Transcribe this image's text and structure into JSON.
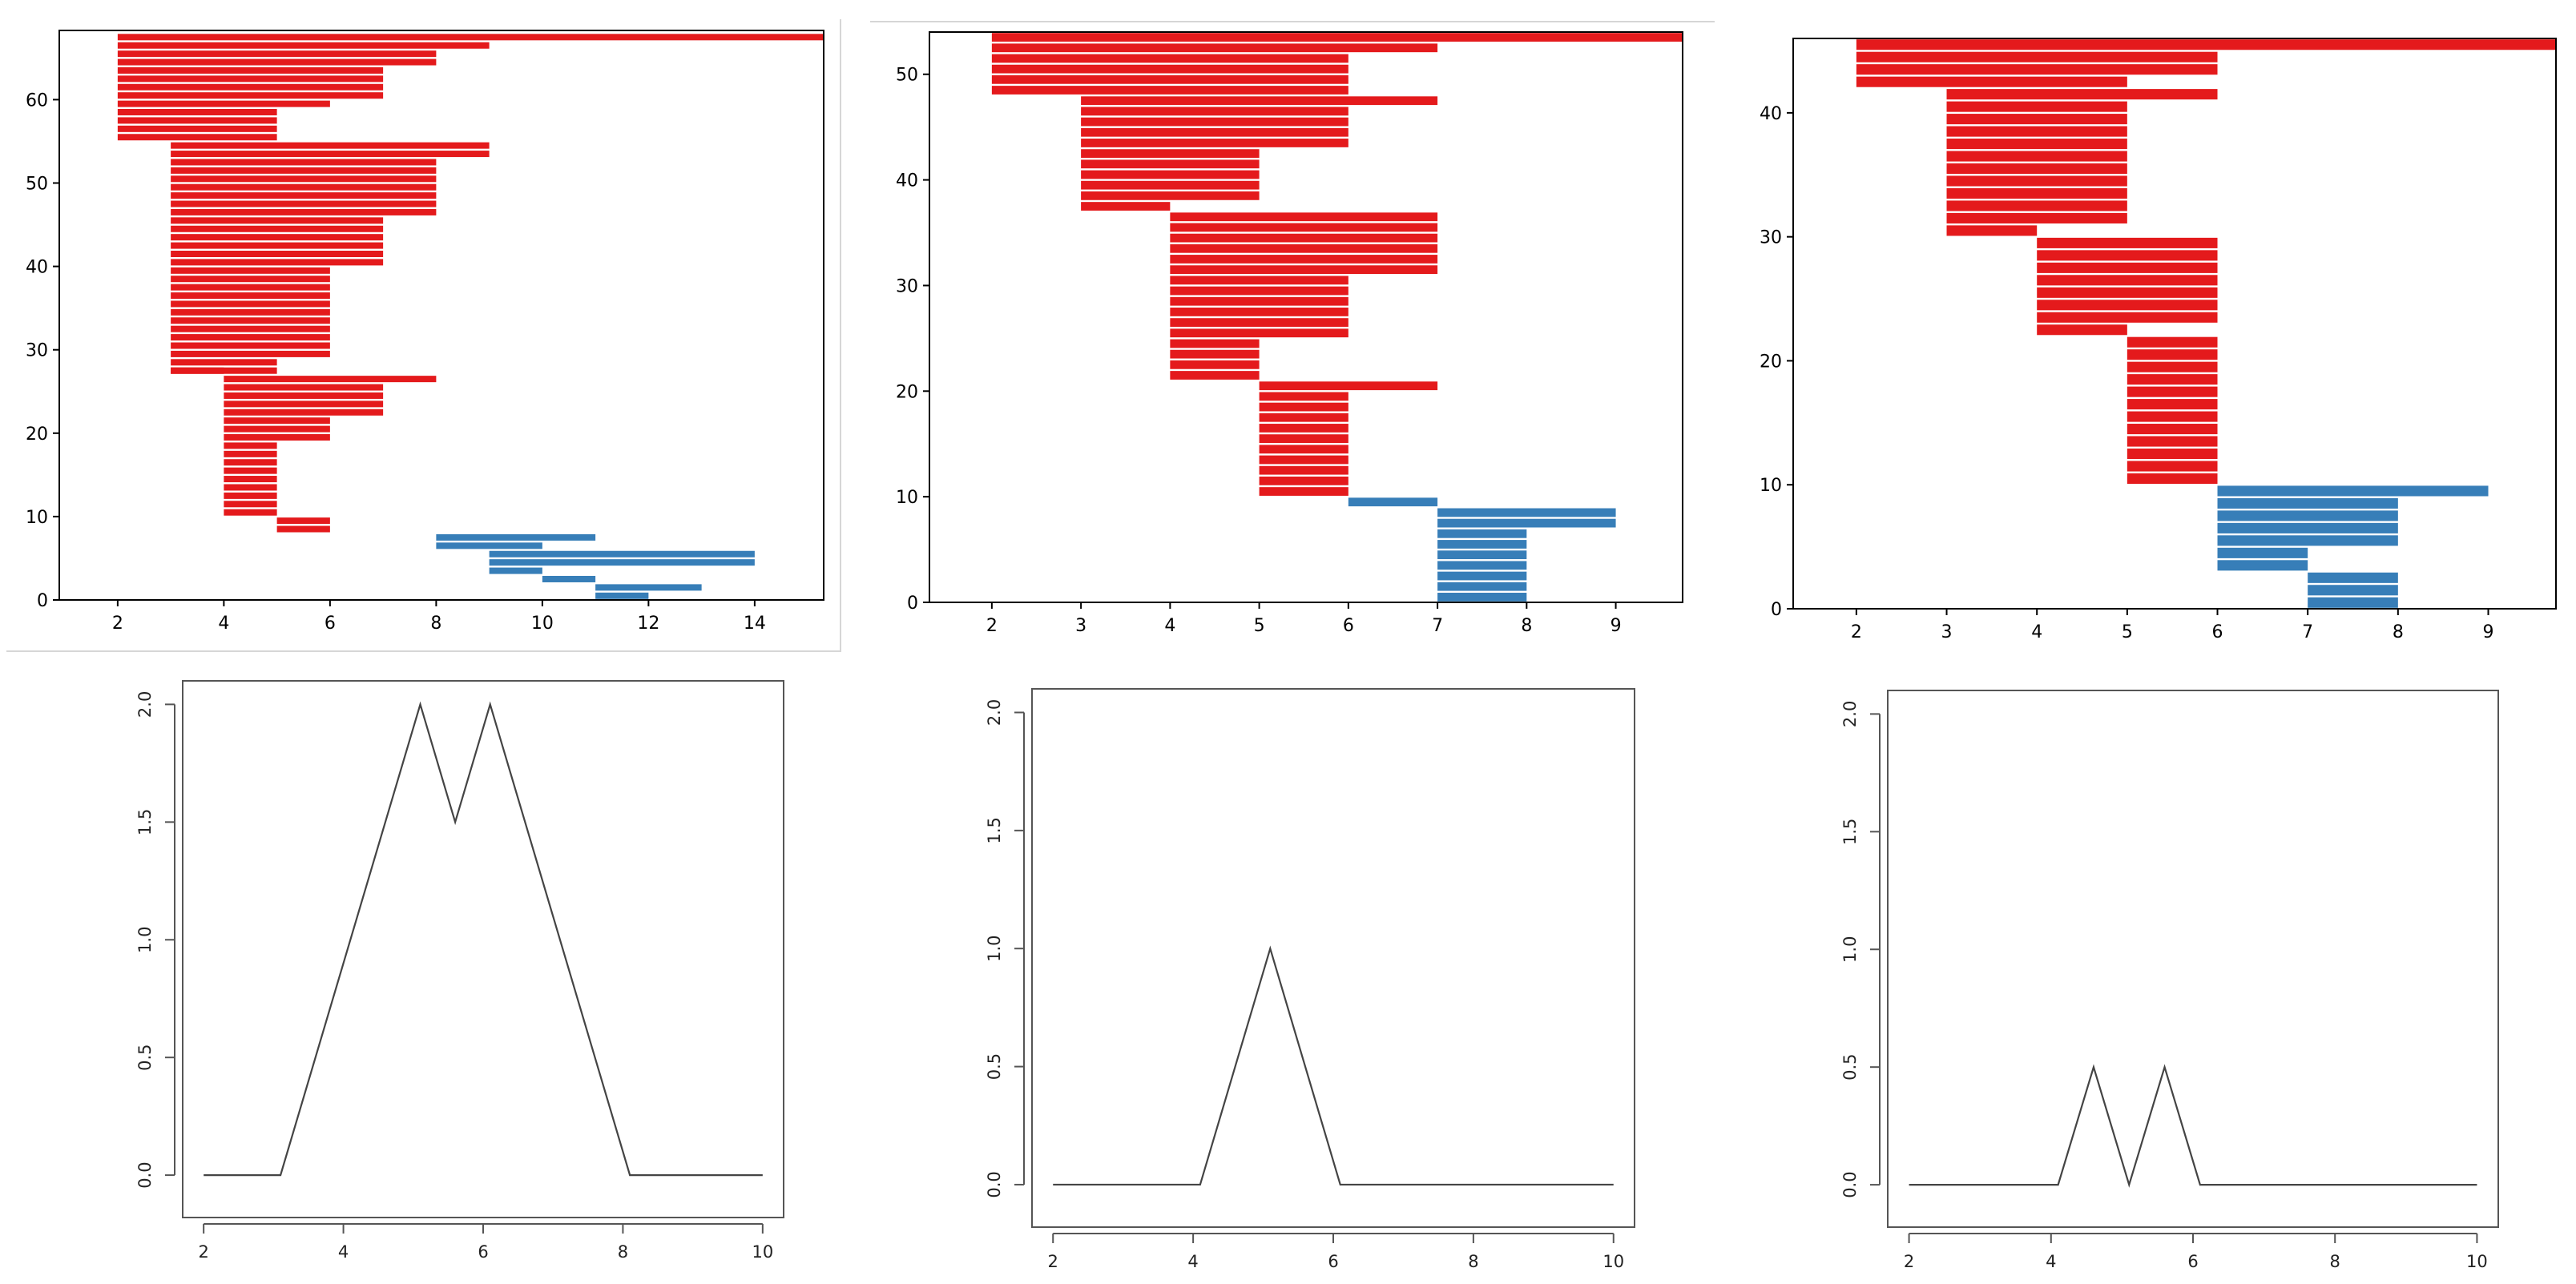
{
  "colors": {
    "red": "#e41a1c",
    "blue": "#377eb8",
    "axis": "#000000",
    "line": "#444444"
  },
  "chart_data": [
    {
      "id": "top-left",
      "type": "bar",
      "orientation": "horizontal-interval",
      "xlim": [
        0.9,
        15.3
      ],
      "ylim": [
        0,
        68.3
      ],
      "xticks": [
        2,
        4,
        6,
        8,
        10,
        12,
        14
      ],
      "yticks": [
        0,
        10,
        20,
        30,
        40,
        50,
        60
      ],
      "xtick_labels": [
        "2",
        "4",
        "6",
        "8",
        "10",
        "12",
        "14"
      ],
      "ytick_labels": [
        "0",
        "10",
        "20",
        "30",
        "40",
        "50",
        "60"
      ],
      "series": [
        {
          "name": "red",
          "color": "red",
          "start": 2,
          "rows": [
            {
              "y0": 67,
              "y1": 68,
              "end": 15.5
            },
            {
              "y0": 55,
              "y1": 67,
              "end": [
                9,
                8,
                8,
                7,
                7,
                7,
                7,
                6,
                5,
                5,
                5,
                5
              ]
            },
            {
              "y0": 27,
              "y1": 55,
              "end": [
                9,
                9,
                8,
                8,
                8,
                8,
                8,
                8,
                8,
                7,
                7,
                7,
                7,
                7,
                7,
                6,
                6,
                6,
                6,
                6,
                6,
                6,
                6,
                6,
                6,
                6,
                5,
                5
              ]
            },
            {
              "y0": 10,
              "y1": 27,
              "end": [
                8,
                7,
                7,
                7,
                7,
                6,
                6,
                6,
                5,
                5,
                5,
                5,
                5,
                5,
                5,
                5,
                5
              ]
            }
          ],
          "starts": [
            2,
            2,
            3,
            4
          ]
        },
        {
          "name": "red-small",
          "color": "red",
          "bars": [
            {
              "y": 27,
              "x0": 3,
              "x1": 4
            },
            {
              "y": 8,
              "x0": 5,
              "x1": 6
            },
            {
              "y": 9,
              "x0": 5,
              "x1": 6
            }
          ]
        },
        {
          "name": "blue",
          "color": "blue",
          "bars": [
            {
              "y": 7,
              "x0": 8,
              "x1": 11
            },
            {
              "y": 6,
              "x0": 8,
              "x1": 10
            },
            {
              "y": 5,
              "x0": 9,
              "x1": 14
            },
            {
              "y": 4,
              "x0": 9,
              "x1": 14
            },
            {
              "y": 3,
              "x0": 9,
              "x1": 10
            },
            {
              "y": 2,
              "x0": 10,
              "x1": 11
            },
            {
              "y": 1,
              "x0": 11,
              "x1": 13
            },
            {
              "y": 0,
              "x0": 11,
              "x1": 12
            }
          ]
        }
      ]
    },
    {
      "id": "top-middle",
      "type": "bar",
      "orientation": "horizontal-interval",
      "xlim": [
        1.3,
        9.75
      ],
      "ylim": [
        0,
        54
      ],
      "xticks": [
        2,
        3,
        4,
        5,
        6,
        7,
        8,
        9
      ],
      "yticks": [
        0,
        10,
        20,
        30,
        40,
        50
      ],
      "xtick_labels": [
        "2",
        "3",
        "4",
        "5",
        "6",
        "7",
        "8",
        "9"
      ],
      "ytick_labels": [
        "0",
        "10",
        "20",
        "30",
        "40",
        "50"
      ],
      "series": [
        {
          "name": "red",
          "color": "red",
          "bars": [
            {
              "y": 53,
              "x0": 2,
              "x1": 10
            },
            {
              "y": 52,
              "x0": 2,
              "x1": 7
            },
            {
              "y": 51,
              "x0": 2,
              "x1": 6
            },
            {
              "y": 50,
              "x0": 2,
              "x1": 6
            },
            {
              "y": 49,
              "x0": 2,
              "x1": 6
            },
            {
              "y": 48,
              "x0": 2,
              "x1": 6
            },
            {
              "y": 47,
              "x0": 3,
              "x1": 7
            },
            {
              "y": 46,
              "x0": 3,
              "x1": 6
            },
            {
              "y": 45,
              "x0": 3,
              "x1": 6
            },
            {
              "y": 44,
              "x0": 3,
              "x1": 6
            },
            {
              "y": 43,
              "x0": 3,
              "x1": 6
            },
            {
              "y": 42,
              "x0": 3,
              "x1": 5
            },
            {
              "y": 41,
              "x0": 3,
              "x1": 5
            },
            {
              "y": 40,
              "x0": 3,
              "x1": 5
            },
            {
              "y": 39,
              "x0": 3,
              "x1": 5
            },
            {
              "y": 38,
              "x0": 3,
              "x1": 5
            },
            {
              "y": 37,
              "x0": 3,
              "x1": 4
            },
            {
              "y": 36,
              "x0": 4,
              "x1": 7
            },
            {
              "y": 35,
              "x0": 4,
              "x1": 7
            },
            {
              "y": 34,
              "x0": 4,
              "x1": 7
            },
            {
              "y": 33,
              "x0": 4,
              "x1": 7
            },
            {
              "y": 32,
              "x0": 4,
              "x1": 7
            },
            {
              "y": 31,
              "x0": 4,
              "x1": 7
            },
            {
              "y": 30,
              "x0": 4,
              "x1": 6
            },
            {
              "y": 29,
              "x0": 4,
              "x1": 6
            },
            {
              "y": 28,
              "x0": 4,
              "x1": 6
            },
            {
              "y": 27,
              "x0": 4,
              "x1": 6
            },
            {
              "y": 26,
              "x0": 4,
              "x1": 6
            },
            {
              "y": 25,
              "x0": 4,
              "x1": 6
            },
            {
              "y": 24,
              "x0": 4,
              "x1": 5
            },
            {
              "y": 23,
              "x0": 4,
              "x1": 5
            },
            {
              "y": 22,
              "x0": 4,
              "x1": 5
            },
            {
              "y": 21,
              "x0": 4,
              "x1": 5
            },
            {
              "y": 20,
              "x0": 5,
              "x1": 7
            },
            {
              "y": 19,
              "x0": 5,
              "x1": 6
            },
            {
              "y": 18,
              "x0": 5,
              "x1": 6
            },
            {
              "y": 17,
              "x0": 5,
              "x1": 6
            },
            {
              "y": 16,
              "x0": 5,
              "x1": 6
            },
            {
              "y": 15,
              "x0": 5,
              "x1": 6
            },
            {
              "y": 14,
              "x0": 5,
              "x1": 6
            },
            {
              "y": 13,
              "x0": 5,
              "x1": 6
            },
            {
              "y": 12,
              "x0": 5,
              "x1": 6
            },
            {
              "y": 11,
              "x0": 5,
              "x1": 6
            },
            {
              "y": 10,
              "x0": 5,
              "x1": 6
            }
          ]
        },
        {
          "name": "blue",
          "color": "blue",
          "bars": [
            {
              "y": 9,
              "x0": 6,
              "x1": 7
            },
            {
              "y": 8,
              "x0": 7,
              "x1": 9
            },
            {
              "y": 7,
              "x0": 7,
              "x1": 9
            },
            {
              "y": 6,
              "x0": 7,
              "x1": 8
            },
            {
              "y": 5,
              "x0": 7,
              "x1": 8
            },
            {
              "y": 4,
              "x0": 7,
              "x1": 8
            },
            {
              "y": 3,
              "x0": 7,
              "x1": 8
            },
            {
              "y": 2,
              "x0": 7,
              "x1": 8
            },
            {
              "y": 1,
              "x0": 7,
              "x1": 8
            },
            {
              "y": 0,
              "x0": 7,
              "x1": 8
            }
          ]
        }
      ]
    },
    {
      "id": "top-right",
      "type": "bar",
      "orientation": "horizontal-interval",
      "xlim": [
        1.3,
        9.75
      ],
      "ylim": [
        0,
        46
      ],
      "xticks": [
        2,
        3,
        4,
        5,
        6,
        7,
        8,
        9
      ],
      "yticks": [
        0,
        10,
        20,
        30,
        40
      ],
      "xtick_labels": [
        "2",
        "3",
        "4",
        "5",
        "6",
        "7",
        "8",
        "9"
      ],
      "ytick_labels": [
        "0",
        "10",
        "20",
        "30",
        "40"
      ],
      "series": [
        {
          "name": "red",
          "color": "red",
          "bars": [
            {
              "y": 45,
              "x0": 2,
              "x1": 10
            },
            {
              "y": 44,
              "x0": 2,
              "x1": 6
            },
            {
              "y": 43,
              "x0": 2,
              "x1": 6
            },
            {
              "y": 42,
              "x0": 2,
              "x1": 5
            },
            {
              "y": 41,
              "x0": 3,
              "x1": 6
            },
            {
              "y": 40,
              "x0": 3,
              "x1": 5
            },
            {
              "y": 39,
              "x0": 3,
              "x1": 5
            },
            {
              "y": 38,
              "x0": 3,
              "x1": 5
            },
            {
              "y": 37,
              "x0": 3,
              "x1": 5
            },
            {
              "y": 36,
              "x0": 3,
              "x1": 5
            },
            {
              "y": 35,
              "x0": 3,
              "x1": 5
            },
            {
              "y": 34,
              "x0": 3,
              "x1": 5
            },
            {
              "y": 33,
              "x0": 3,
              "x1": 5
            },
            {
              "y": 32,
              "x0": 3,
              "x1": 5
            },
            {
              "y": 31,
              "x0": 3,
              "x1": 5
            },
            {
              "y": 30,
              "x0": 3,
              "x1": 4
            },
            {
              "y": 29,
              "x0": 4,
              "x1": 6
            },
            {
              "y": 28,
              "x0": 4,
              "x1": 6
            },
            {
              "y": 27,
              "x0": 4,
              "x1": 6
            },
            {
              "y": 26,
              "x0": 4,
              "x1": 6
            },
            {
              "y": 25,
              "x0": 4,
              "x1": 6
            },
            {
              "y": 24,
              "x0": 4,
              "x1": 6
            },
            {
              "y": 23,
              "x0": 4,
              "x1": 6
            },
            {
              "y": 22,
              "x0": 4,
              "x1": 5
            },
            {
              "y": 21,
              "x0": 5,
              "x1": 6
            },
            {
              "y": 20,
              "x0": 5,
              "x1": 6
            },
            {
              "y": 19,
              "x0": 5,
              "x1": 6
            },
            {
              "y": 18,
              "x0": 5,
              "x1": 6
            },
            {
              "y": 17,
              "x0": 5,
              "x1": 6
            },
            {
              "y": 16,
              "x0": 5,
              "x1": 6
            },
            {
              "y": 15,
              "x0": 5,
              "x1": 6
            },
            {
              "y": 14,
              "x0": 5,
              "x1": 6
            },
            {
              "y": 13,
              "x0": 5,
              "x1": 6
            },
            {
              "y": 12,
              "x0": 5,
              "x1": 6
            },
            {
              "y": 11,
              "x0": 5,
              "x1": 6
            },
            {
              "y": 10,
              "x0": 5,
              "x1": 6
            }
          ]
        },
        {
          "name": "blue",
          "color": "blue",
          "bars": [
            {
              "y": 9,
              "x0": 6,
              "x1": 9
            },
            {
              "y": 8,
              "x0": 6,
              "x1": 8
            },
            {
              "y": 7,
              "x0": 6,
              "x1": 8
            },
            {
              "y": 6,
              "x0": 6,
              "x1": 8
            },
            {
              "y": 5,
              "x0": 6,
              "x1": 8
            },
            {
              "y": 4,
              "x0": 6,
              "x1": 7
            },
            {
              "y": 3,
              "x0": 6,
              "x1": 7
            },
            {
              "y": 2,
              "x0": 7,
              "x1": 8
            },
            {
              "y": 1,
              "x0": 7,
              "x1": 8
            },
            {
              "y": 0,
              "x0": 7,
              "x1": 8
            }
          ]
        }
      ]
    },
    {
      "id": "bottom-left",
      "type": "line",
      "xlim": [
        1.7,
        10.3
      ],
      "ylim": [
        -0.18,
        2.1
      ],
      "xticks": [
        2,
        4,
        6,
        8,
        10
      ],
      "yticks": [
        0,
        0.5,
        1,
        1.5,
        2
      ],
      "xtick_labels": [
        "2",
        "4",
        "6",
        "8",
        "10"
      ],
      "ytick_labels": [
        "0.0",
        "0.5",
        "1.0",
        "1.5",
        "2.0"
      ],
      "x": [
        2,
        3.1,
        5.1,
        5.6,
        6.1,
        8.1,
        10
      ],
      "y": [
        0,
        0,
        2,
        1.5,
        2,
        0,
        0
      ]
    },
    {
      "id": "bottom-middle",
      "type": "line",
      "xlim": [
        1.7,
        10.3
      ],
      "ylim": [
        -0.18,
        2.1
      ],
      "xticks": [
        2,
        4,
        6,
        8,
        10
      ],
      "yticks": [
        0,
        0.5,
        1,
        1.5,
        2
      ],
      "xtick_labels": [
        "2",
        "4",
        "6",
        "8",
        "10"
      ],
      "ytick_labels": [
        "0.0",
        "0.5",
        "1.0",
        "1.5",
        "2.0"
      ],
      "x": [
        2,
        4.1,
        5.1,
        6.1,
        10
      ],
      "y": [
        0,
        0,
        1,
        0,
        0
      ]
    },
    {
      "id": "bottom-right",
      "type": "line",
      "xlim": [
        1.7,
        10.3
      ],
      "ylim": [
        -0.18,
        2.1
      ],
      "xticks": [
        2,
        4,
        6,
        8,
        10
      ],
      "yticks": [
        0,
        0.5,
        1,
        1.5,
        2
      ],
      "xtick_labels": [
        "2",
        "4",
        "6",
        "8",
        "10"
      ],
      "ytick_labels": [
        "0.0",
        "0.5",
        "1.0",
        "1.5",
        "2.0"
      ],
      "x": [
        2,
        4.1,
        4.6,
        5.1,
        5.6,
        6.1,
        10
      ],
      "y": [
        0,
        0,
        0.5,
        0,
        0.5,
        0,
        0
      ]
    }
  ]
}
